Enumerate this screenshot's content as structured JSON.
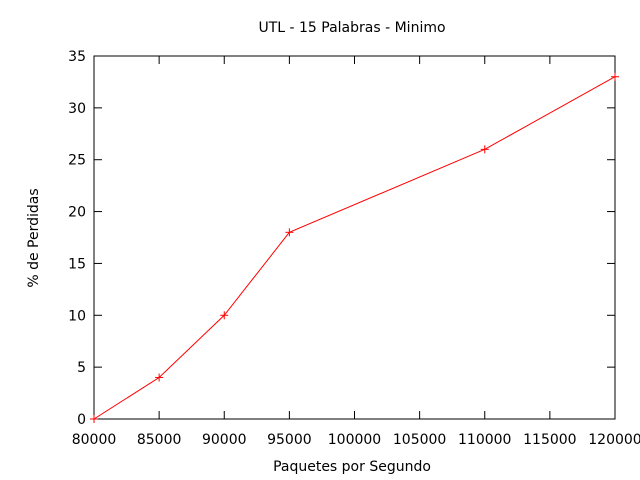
{
  "chart_data": {
    "type": "line",
    "title": "UTL - 15 Palabras - Minimo",
    "xlabel": "Paquetes por Segundo",
    "ylabel": "% de Perdidas",
    "xlim": [
      80000,
      120000
    ],
    "ylim": [
      0,
      35
    ],
    "xticks": [
      80000,
      85000,
      90000,
      95000,
      100000,
      105000,
      110000,
      115000,
      120000
    ],
    "yticks": [
      0,
      5,
      10,
      15,
      20,
      25,
      30,
      35
    ],
    "grid": false,
    "series": [
      {
        "color": "#ff0000",
        "marker": "plus",
        "x": [
          80000,
          85000,
          90000,
          95000,
          110000,
          120000
        ],
        "y": [
          0,
          4,
          10,
          18,
          26,
          33
        ]
      }
    ]
  }
}
